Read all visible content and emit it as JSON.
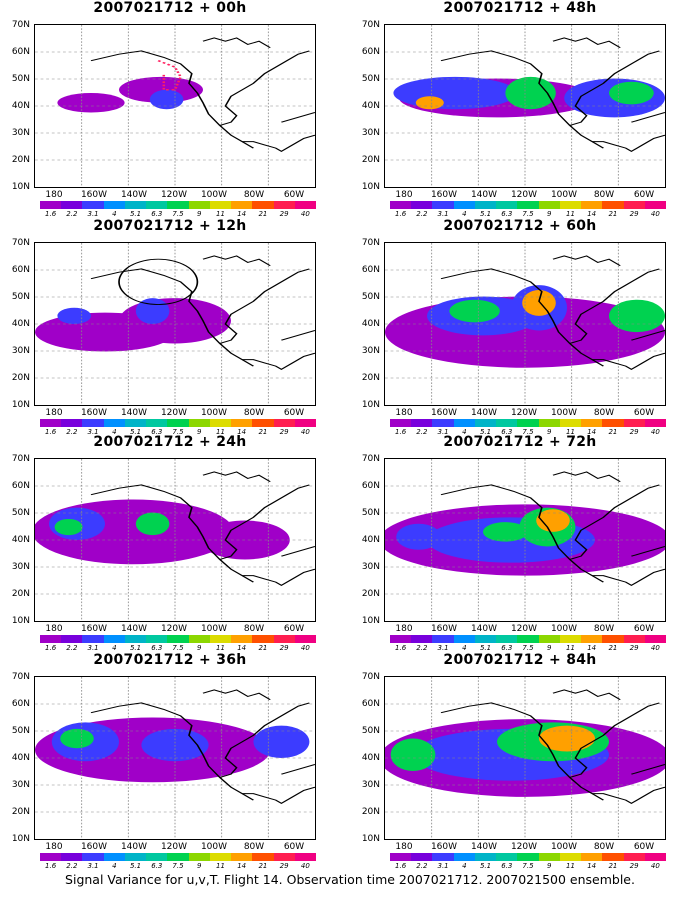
{
  "caption": "Signal Variance for u,v,T. Flight 14. Observation time 2007021712. 2007021500 ensemble.",
  "lat_labels": [
    "70N",
    "60N",
    "50N",
    "40N",
    "30N",
    "20N",
    "10N"
  ],
  "lon_labels": [
    "180",
    "160W",
    "140W",
    "120W",
    "100W",
    "80W",
    "60W"
  ],
  "colorbar": {
    "labels": [
      "1.6",
      "2.2",
      "3.1",
      "4",
      "5.1",
      "6.3",
      "7.5",
      "9",
      "11",
      "14",
      "21",
      "29",
      "40"
    ],
    "colors": [
      "#a000c8",
      "#7800dc",
      "#3c3cff",
      "#0090ff",
      "#00b4c8",
      "#00c8a0",
      "#00d250",
      "#8cd700",
      "#dcdc00",
      "#ffa000",
      "#ff5000",
      "#ff1e50",
      "#f00082"
    ]
  },
  "panels": [
    {
      "title": "2007021712 + 00h",
      "blobs": [
        [
          20,
          48,
          12,
          6,
          0
        ],
        [
          45,
          40,
          15,
          8,
          0
        ],
        [
          47,
          46,
          6,
          6,
          1
        ]
      ],
      "dots": true
    },
    {
      "title": "2007021712 + 48h",
      "blobs": [
        [
          40,
          45,
          35,
          12,
          0
        ],
        [
          25,
          42,
          22,
          10,
          1
        ],
        [
          52,
          42,
          9,
          10,
          2
        ],
        [
          82,
          45,
          18,
          12,
          1
        ],
        [
          88,
          42,
          8,
          7,
          2
        ],
        [
          16,
          48,
          5,
          4,
          3
        ]
      ]
    },
    {
      "title": "2007021712 + 12h",
      "blobs": [
        [
          25,
          55,
          25,
          12,
          0
        ],
        [
          50,
          48,
          20,
          14,
          0
        ],
        [
          14,
          45,
          6,
          5,
          1
        ],
        [
          42,
          42,
          6,
          8,
          1
        ]
      ],
      "ring": true
    },
    {
      "title": "2007021712 + 60h",
      "blobs": [
        [
          50,
          55,
          50,
          22,
          0
        ],
        [
          35,
          45,
          20,
          12,
          1
        ],
        [
          55,
          40,
          10,
          14,
          1
        ],
        [
          32,
          42,
          9,
          7,
          2
        ],
        [
          55,
          37,
          6,
          8,
          3
        ],
        [
          90,
          45,
          10,
          10,
          2
        ]
      ]
    },
    {
      "title": "2007021712 + 24h",
      "blobs": [
        [
          35,
          45,
          36,
          20,
          0
        ],
        [
          15,
          40,
          10,
          10,
          1
        ],
        [
          42,
          40,
          6,
          7,
          2
        ],
        [
          75,
          50,
          16,
          12,
          0
        ],
        [
          12,
          42,
          5,
          5,
          2
        ]
      ]
    },
    {
      "title": "2007021712 + 72h",
      "blobs": [
        [
          50,
          50,
          52,
          22,
          0
        ],
        [
          45,
          50,
          30,
          14,
          1
        ],
        [
          58,
          42,
          10,
          12,
          2
        ],
        [
          60,
          38,
          6,
          7,
          3
        ],
        [
          43,
          45,
          8,
          6,
          2
        ],
        [
          12,
          48,
          8,
          8,
          1
        ]
      ]
    },
    {
      "title": "2007021712 + 36h",
      "blobs": [
        [
          42,
          45,
          42,
          20,
          0
        ],
        [
          18,
          40,
          12,
          12,
          1
        ],
        [
          15,
          38,
          6,
          6,
          2
        ],
        [
          50,
          42,
          12,
          10,
          1
        ],
        [
          88,
          40,
          10,
          10,
          1
        ]
      ]
    },
    {
      "title": "2007021712 + 84h",
      "blobs": [
        [
          50,
          50,
          52,
          24,
          0
        ],
        [
          45,
          48,
          35,
          16,
          1
        ],
        [
          60,
          40,
          20,
          12,
          2
        ],
        [
          65,
          38,
          10,
          8,
          3
        ],
        [
          10,
          48,
          8,
          10,
          2
        ]
      ]
    }
  ]
}
